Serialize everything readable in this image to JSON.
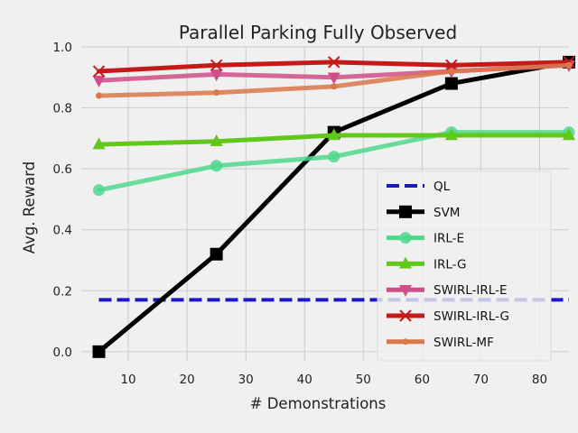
{
  "chart_data": {
    "type": "line",
    "title": "Parallel Parking Fully Observed",
    "xlabel": "# Demonstrations",
    "ylabel": "Avg. Reward",
    "xlim": [
      2,
      85
    ],
    "ylim": [
      -0.03,
      1.0
    ],
    "xticks": [
      10,
      20,
      30,
      40,
      50,
      60,
      70,
      80
    ],
    "yticks": [
      0.0,
      0.2,
      0.4,
      0.6,
      0.8,
      1.0
    ],
    "x": [
      5,
      25,
      45,
      65,
      85
    ],
    "grid": true,
    "legend_position": "lower-right",
    "series": [
      {
        "name": "QL",
        "color": "#1a1ac4",
        "marker": "none",
        "dash": true,
        "x": [
          5,
          85
        ],
        "values": [
          0.17,
          0.17
        ]
      },
      {
        "name": "SVM",
        "color": "#000000",
        "marker": "square",
        "values": [
          0.0,
          0.32,
          0.72,
          0.88,
          0.95
        ]
      },
      {
        "name": "IRL-E",
        "color": "#4fd88e",
        "marker": "circle",
        "values": [
          0.53,
          0.61,
          0.64,
          0.72,
          0.72
        ]
      },
      {
        "name": "IRL-G",
        "color": "#62c71b",
        "marker": "triangle-up",
        "values": [
          0.68,
          0.69,
          0.71,
          0.71,
          0.71
        ]
      },
      {
        "name": "SWIRL-IRL-E",
        "color": "#d14d88",
        "marker": "triangle-down",
        "values": [
          0.89,
          0.91,
          0.9,
          0.92,
          0.94
        ]
      },
      {
        "name": "SWIRL-IRL-G",
        "color": "#c61a1a",
        "marker": "x",
        "values": [
          0.92,
          0.94,
          0.95,
          0.94,
          0.95
        ]
      },
      {
        "name": "SWIRL-MF",
        "color": "#d9784a",
        "marker": "small-circle",
        "values": [
          0.84,
          0.85,
          0.87,
          0.92,
          0.94
        ]
      }
    ]
  }
}
